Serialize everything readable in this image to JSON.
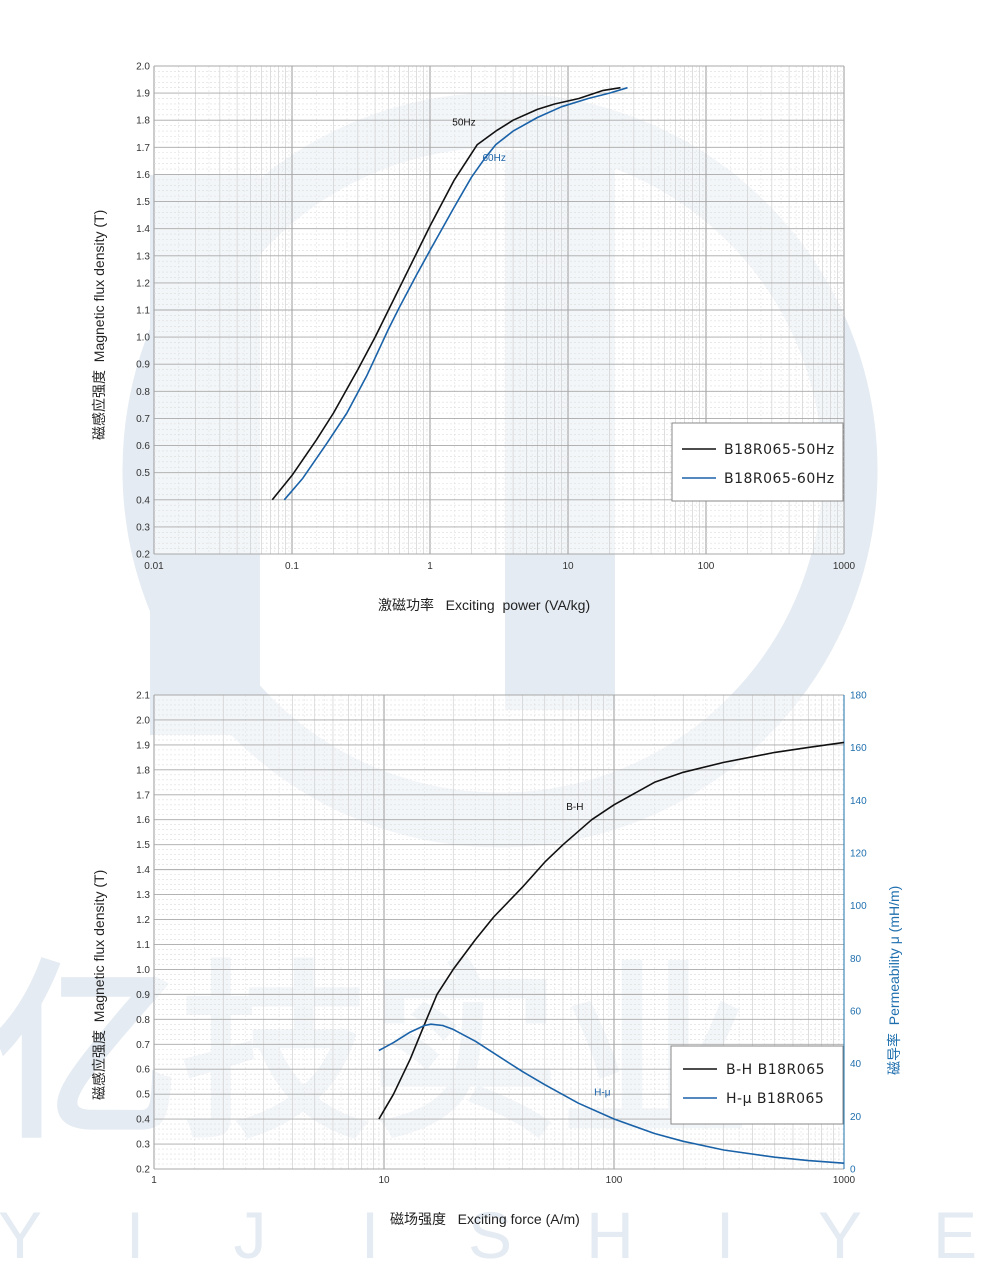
{
  "watermark": {
    "name_cn": "亿技实业",
    "name_en": [
      "Y",
      "I",
      "J",
      "I",
      "S",
      "H",
      "I",
      "Y",
      "E"
    ],
    "color": "#e4ebf2"
  },
  "chart_data": [
    {
      "type": "line",
      "xscale": "log",
      "xlim": [
        0.01,
        1000
      ],
      "ylim": [
        0.2,
        2.0
      ],
      "x_ticks": [
        "0.01",
        "0.1",
        "1",
        "10",
        "100",
        "1000"
      ],
      "y_ticks": [
        "0.2",
        "0.3",
        "0.4",
        "0.5",
        "0.6",
        "0.7",
        "0.8",
        "0.9",
        "1.0",
        "1.1",
        "1.2",
        "1.3",
        "1.4",
        "1.5",
        "1.6",
        "1.7",
        "1.8",
        "1.9",
        "2.0"
      ],
      "ylabel": "磁感应强度  Magnetic flux density (T)",
      "xlabel": "激磁功率   Exciting  power (VA/kg)",
      "legend_position": "bottom-right",
      "grid": true,
      "series": [
        {
          "name": "B18R065-50Hz",
          "annotation": "50Hz",
          "color": "#111111",
          "x": [
            0.072,
            0.1,
            0.15,
            0.2,
            0.3,
            0.4,
            0.5,
            0.7,
            1.0,
            1.5,
            2.2,
            3.0,
            4.0,
            6.0,
            8.0,
            12,
            18,
            24
          ],
          "y": [
            0.4,
            0.49,
            0.62,
            0.72,
            0.88,
            1.0,
            1.1,
            1.25,
            1.41,
            1.58,
            1.71,
            1.76,
            1.8,
            1.84,
            1.86,
            1.88,
            1.91,
            1.92
          ]
        },
        {
          "name": "B18R065-60Hz",
          "annotation": "60Hz",
          "color": "#1a62a8",
          "x": [
            0.088,
            0.12,
            0.18,
            0.25,
            0.35,
            0.5,
            0.6,
            0.8,
            1.0,
            1.5,
            2.0,
            2.5,
            3.0,
            4.0,
            6.0,
            9.0,
            14,
            20,
            27
          ],
          "y": [
            0.4,
            0.48,
            0.61,
            0.72,
            0.86,
            1.03,
            1.11,
            1.23,
            1.32,
            1.48,
            1.59,
            1.66,
            1.71,
            1.76,
            1.81,
            1.85,
            1.88,
            1.9,
            1.92
          ]
        }
      ]
    },
    {
      "type": "line",
      "xscale": "log",
      "xlim": [
        1,
        1000
      ],
      "ylim": [
        0.2,
        2.1
      ],
      "y2lim": [
        0,
        180
      ],
      "x_ticks": [
        "1",
        "10",
        "100",
        "1000"
      ],
      "y_ticks": [
        "0.2",
        "0.3",
        "0.4",
        "0.5",
        "0.6",
        "0.7",
        "0.8",
        "0.9",
        "1.0",
        "1.1",
        "1.2",
        "1.3",
        "1.4",
        "1.5",
        "1.6",
        "1.7",
        "1.8",
        "1.9",
        "2.0",
        "2.1"
      ],
      "y2_ticks": [
        "0",
        "20",
        "40",
        "60",
        "80",
        "100",
        "120",
        "140",
        "160",
        "180"
      ],
      "ylabel": "磁感应强度  Magnetic flux density (T)",
      "y2label": "磁导率  Permeability μ (mH/m)",
      "xlabel": "磁场强度   Exciting force (A/m)",
      "legend_position": "bottom-right",
      "grid": true,
      "series": [
        {
          "name": "B-H B18R065",
          "annotation": "B-H",
          "color": "#111111",
          "axis": "left",
          "x": [
            9.5,
            11,
            13,
            15,
            17,
            20,
            25,
            30,
            40,
            50,
            60,
            80,
            100,
            150,
            200,
            300,
            500,
            700,
            1000
          ],
          "y": [
            0.4,
            0.5,
            0.64,
            0.78,
            0.9,
            1.0,
            1.12,
            1.21,
            1.33,
            1.43,
            1.5,
            1.6,
            1.66,
            1.75,
            1.79,
            1.83,
            1.87,
            1.89,
            1.91
          ]
        },
        {
          "name": "H-μ B18R065",
          "annotation": "H-μ",
          "color": "#1a62a8",
          "axis": "right",
          "x": [
            9.5,
            11,
            13,
            15,
            16,
            18,
            20,
            25,
            30,
            40,
            50,
            70,
            100,
            150,
            200,
            300,
            500,
            700,
            1000
          ],
          "y": [
            45,
            48,
            52,
            54.5,
            55,
            54.5,
            53,
            48.5,
            44,
            37,
            32,
            25,
            19,
            13.5,
            10.5,
            7.2,
            4.5,
            3.2,
            2.2
          ]
        }
      ]
    }
  ]
}
